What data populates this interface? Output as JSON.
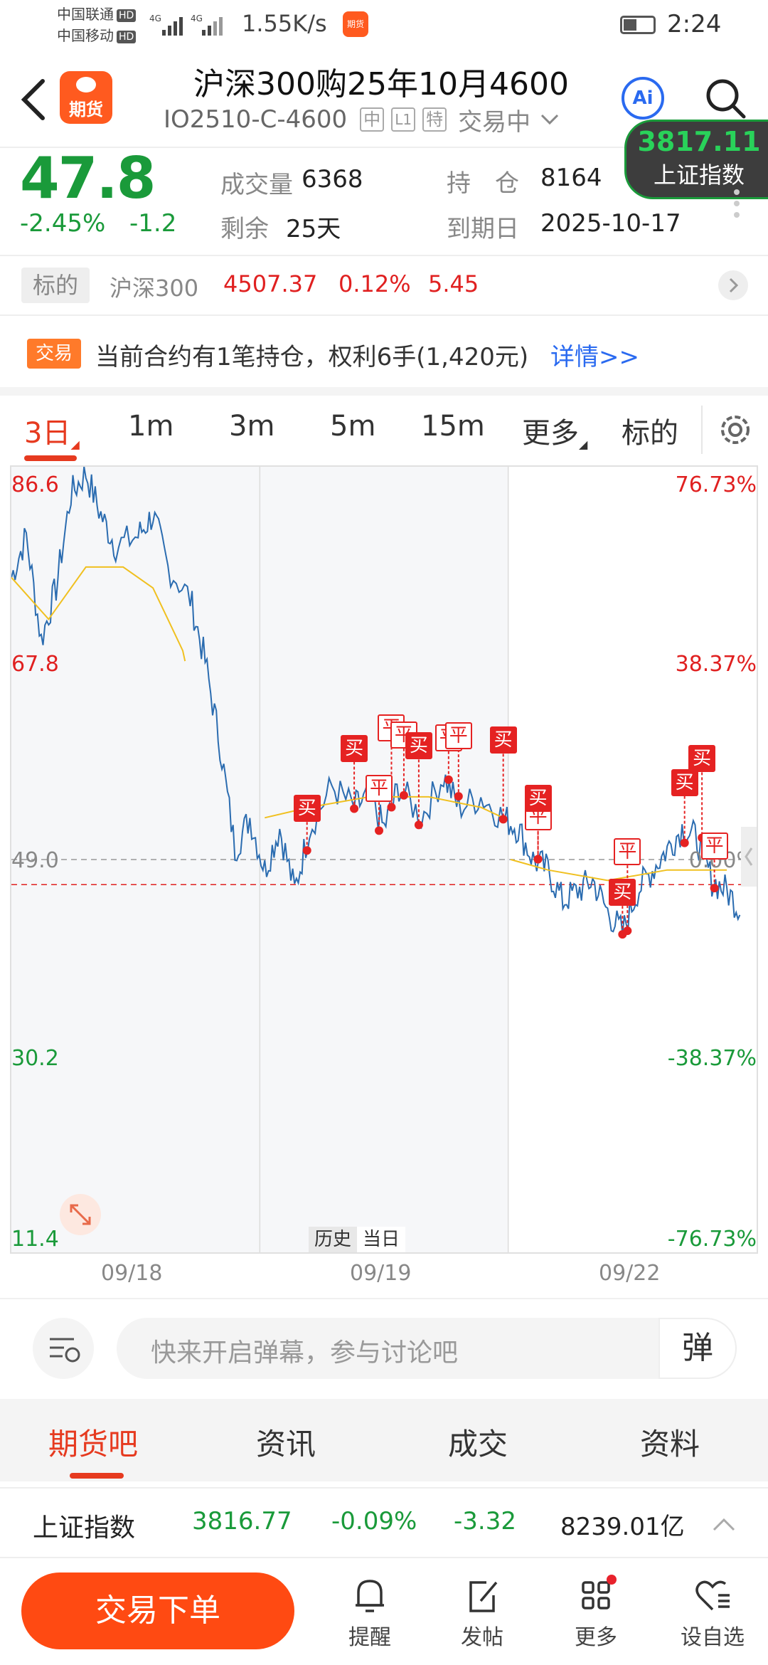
{
  "status_bar": {
    "carrier1": "中国联通",
    "carrier2": "中国移动",
    "hd": "HD",
    "net": "4G",
    "speed": "1.55K/s",
    "app_badge": "期货",
    "time": "2:24"
  },
  "header": {
    "logo_label": "期货",
    "title": "沪深300购25年10月4600",
    "code": "IO2510-C-4600",
    "tags": [
      "中",
      "L1",
      "特"
    ],
    "trade_status": "交易中",
    "ai_label": "Ai"
  },
  "floating_index": {
    "value": "3817.11",
    "name": "上证指数"
  },
  "quote": {
    "price": "47.8",
    "change_pct": "-2.45%",
    "change": "-1.2",
    "volume_label": "成交量",
    "volume": "6368",
    "oi_label": "持　仓",
    "oi": "8164",
    "remain_label": "剩余",
    "remain": "25天",
    "expiry_label": "到期日",
    "expiry": "2025-10-17"
  },
  "underlying": {
    "label": "标的",
    "name": "沪深300",
    "price": "4507.37",
    "pct": "0.12%",
    "chg": "5.45"
  },
  "notice": {
    "badge": "交易",
    "text": "当前合约有1笔持仓，权利6手(1,420元)",
    "link": "详情>>"
  },
  "period_tabs": {
    "items": [
      "3日",
      "1m",
      "3m",
      "5m",
      "15m",
      "更多",
      "标的"
    ],
    "active": "3日"
  },
  "chart_data": {
    "type": "line",
    "left_axis": [
      "86.6",
      "67.8",
      "49.0",
      "30.2",
      "11.4"
    ],
    "right_axis": [
      "76.73%",
      "38.37%",
      "0.00%",
      "-38.37%",
      "-76.73%"
    ],
    "ylim": [
      11.4,
      86.6
    ],
    "reference": 49.0,
    "cost_line": 46.6,
    "x_labels": [
      "09/18",
      "09/19",
      "09/22"
    ],
    "days": [
      "09/18",
      "09/19",
      "09/22"
    ],
    "history_label": "历史",
    "today_label": "当日",
    "markers": [
      {
        "day": "09/19",
        "t": 0.19,
        "label": "买"
      },
      {
        "day": "09/19",
        "t": 0.38,
        "label": "买"
      },
      {
        "day": "09/19",
        "t": 0.53,
        "label": "平"
      },
      {
        "day": "09/19",
        "t": 0.48,
        "label": "平"
      },
      {
        "day": "09/19",
        "t": 0.58,
        "label": "平"
      },
      {
        "day": "09/19",
        "t": 0.64,
        "label": "买"
      },
      {
        "day": "09/19",
        "t": 0.76,
        "label": "平"
      },
      {
        "day": "09/19",
        "t": 0.8,
        "label": "平"
      },
      {
        "day": "09/19",
        "t": 0.98,
        "label": "买"
      },
      {
        "day": "09/22",
        "t": 0.12,
        "label": "平"
      },
      {
        "day": "09/22",
        "t": 0.12,
        "label": "买"
      },
      {
        "day": "09/22",
        "t": 0.48,
        "label": "平"
      },
      {
        "day": "09/22",
        "t": 0.46,
        "label": "买"
      },
      {
        "day": "09/22",
        "t": 0.71,
        "label": "买"
      },
      {
        "day": "09/22",
        "t": 0.78,
        "label": "买"
      },
      {
        "day": "09/22",
        "t": 0.83,
        "label": "平"
      }
    ]
  },
  "danmaku": {
    "placeholder": "快来开启弹幕，参与讨论吧",
    "button": "弹"
  },
  "bottom_tabs": {
    "items": [
      "期货吧",
      "资讯",
      "成交",
      "资料"
    ],
    "active": "期货吧"
  },
  "index_bar": {
    "name": "上证指数",
    "value": "3816.77",
    "pct": "-0.09%",
    "chg": "-3.32",
    "amount": "8239.01亿"
  },
  "bottom_nav": {
    "order_button": "交易下单",
    "items": [
      {
        "label": "提醒",
        "icon": "bell-icon"
      },
      {
        "label": "发帖",
        "icon": "edit-icon"
      },
      {
        "label": "更多",
        "icon": "grid-icon"
      },
      {
        "label": "设自选",
        "icon": "heart-list-icon"
      }
    ]
  }
}
